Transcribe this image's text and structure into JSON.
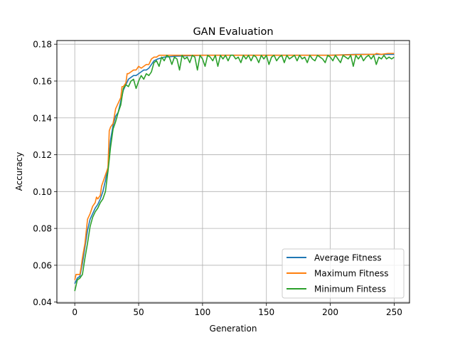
{
  "chart_data": {
    "type": "line",
    "title": "GAN Evaluation",
    "xlabel": "Generation",
    "ylabel": "Accuracy",
    "xlim": [
      -14,
      262
    ],
    "ylim": [
      0.0395,
      0.182
    ],
    "xticks": [
      0,
      50,
      100,
      150,
      200,
      250
    ],
    "yticks": [
      0.04,
      0.06,
      0.08,
      0.1,
      0.12,
      0.14,
      0.16,
      0.18
    ],
    "ytick_labels": [
      "0.04",
      "0.06",
      "0.08",
      "0.10",
      "0.12",
      "0.14",
      "0.16",
      "0.18"
    ],
    "grid": true,
    "legend_position": "lower-right",
    "series": [
      {
        "name": "Average Fitness",
        "color": "#1f77b4",
        "x": [
          0,
          2,
          4,
          6,
          8,
          10,
          12,
          14,
          16,
          18,
          20,
          22,
          24,
          26,
          28,
          30,
          32,
          34,
          36,
          38,
          40,
          42,
          44,
          46,
          48,
          50,
          52,
          54,
          56,
          58,
          60,
          62,
          65,
          70,
          80,
          100,
          120,
          150,
          180,
          200,
          220,
          235,
          240,
          245,
          250
        ],
        "y": [
          0.05,
          0.053,
          0.054,
          0.061,
          0.07,
          0.079,
          0.085,
          0.088,
          0.091,
          0.093,
          0.096,
          0.1,
          0.106,
          0.113,
          0.128,
          0.136,
          0.141,
          0.143,
          0.149,
          0.155,
          0.158,
          0.161,
          0.162,
          0.163,
          0.163,
          0.164,
          0.165,
          0.166,
          0.166,
          0.167,
          0.169,
          0.171,
          0.172,
          0.173,
          0.1735,
          0.174,
          0.174,
          0.174,
          0.174,
          0.174,
          0.1745,
          0.1745,
          0.1745,
          0.1745,
          0.1745
        ]
      },
      {
        "name": "Maximum Fitness",
        "color": "#ff7f0e",
        "x": [
          0,
          1,
          2,
          4,
          5,
          6,
          8,
          10,
          12,
          14,
          16,
          17,
          18,
          20,
          21,
          22,
          24,
          26,
          27,
          28,
          30,
          31,
          32,
          34,
          36,
          37,
          38,
          40,
          41,
          42,
          44,
          46,
          48,
          50,
          52,
          54,
          56,
          58,
          60,
          62,
          64,
          66,
          70,
          80,
          100,
          150,
          200,
          230,
          235,
          236,
          240,
          245,
          250
        ],
        "y": [
          0.052,
          0.055,
          0.055,
          0.055,
          0.059,
          0.064,
          0.072,
          0.085,
          0.088,
          0.092,
          0.094,
          0.097,
          0.096,
          0.098,
          0.103,
          0.105,
          0.109,
          0.113,
          0.133,
          0.135,
          0.137,
          0.141,
          0.145,
          0.148,
          0.151,
          0.157,
          0.157,
          0.159,
          0.164,
          0.164,
          0.165,
          0.166,
          0.166,
          0.168,
          0.167,
          0.168,
          0.169,
          0.169,
          0.172,
          0.173,
          0.173,
          0.174,
          0.174,
          0.174,
          0.174,
          0.174,
          0.174,
          0.1745,
          0.1745,
          0.175,
          0.1745,
          0.175,
          0.175
        ]
      },
      {
        "name": "Minimum Fintess",
        "color": "#2ca02c",
        "x": [
          0,
          1,
          2,
          4,
          6,
          8,
          10,
          12,
          14,
          16,
          18,
          20,
          22,
          24,
          26,
          28,
          30,
          32,
          34,
          36,
          38,
          40,
          42,
          44,
          46,
          48,
          50,
          52,
          54,
          56,
          58,
          60,
          62,
          64,
          66,
          68,
          70,
          72,
          74,
          76,
          78,
          80,
          82,
          84,
          86,
          88,
          90,
          92,
          94,
          96,
          98,
          100,
          102,
          104,
          106,
          108,
          110,
          112,
          114,
          116,
          118,
          120,
          122,
          124,
          126,
          128,
          130,
          132,
          134,
          136,
          138,
          140,
          142,
          144,
          146,
          148,
          150,
          152,
          154,
          156,
          158,
          160,
          162,
          164,
          166,
          168,
          170,
          172,
          174,
          176,
          178,
          180,
          182,
          184,
          186,
          188,
          190,
          192,
          194,
          196,
          198,
          200,
          202,
          204,
          206,
          208,
          210,
          212,
          214,
          216,
          218,
          220,
          222,
          224,
          226,
          228,
          230,
          232,
          234,
          236,
          238,
          240,
          242,
          244,
          246,
          248,
          250
        ],
        "y": [
          0.046,
          0.049,
          0.052,
          0.053,
          0.055,
          0.064,
          0.072,
          0.081,
          0.086,
          0.089,
          0.091,
          0.094,
          0.096,
          0.1,
          0.111,
          0.124,
          0.134,
          0.138,
          0.143,
          0.147,
          0.156,
          0.158,
          0.157,
          0.16,
          0.161,
          0.156,
          0.16,
          0.163,
          0.161,
          0.164,
          0.163,
          0.165,
          0.17,
          0.171,
          0.168,
          0.173,
          0.171,
          0.174,
          0.173,
          0.169,
          0.173,
          0.172,
          0.166,
          0.174,
          0.172,
          0.173,
          0.17,
          0.174,
          0.173,
          0.166,
          0.174,
          0.172,
          0.168,
          0.174,
          0.173,
          0.171,
          0.174,
          0.168,
          0.174,
          0.172,
          0.174,
          0.171,
          0.174,
          0.174,
          0.172,
          0.173,
          0.17,
          0.174,
          0.172,
          0.174,
          0.171,
          0.174,
          0.173,
          0.17,
          0.174,
          0.172,
          0.174,
          0.169,
          0.173,
          0.174,
          0.171,
          0.173,
          0.174,
          0.17,
          0.174,
          0.172,
          0.173,
          0.174,
          0.171,
          0.174,
          0.172,
          0.173,
          0.17,
          0.174,
          0.172,
          0.171,
          0.174,
          0.173,
          0.172,
          0.17,
          0.174,
          0.173,
          0.171,
          0.174,
          0.172,
          0.17,
          0.174,
          0.173,
          0.172,
          0.174,
          0.168,
          0.174,
          0.172,
          0.174,
          0.171,
          0.173,
          0.174,
          0.172,
          0.174,
          0.169,
          0.173,
          0.172,
          0.174,
          0.172,
          0.173,
          0.172,
          0.173
        ]
      }
    ]
  }
}
